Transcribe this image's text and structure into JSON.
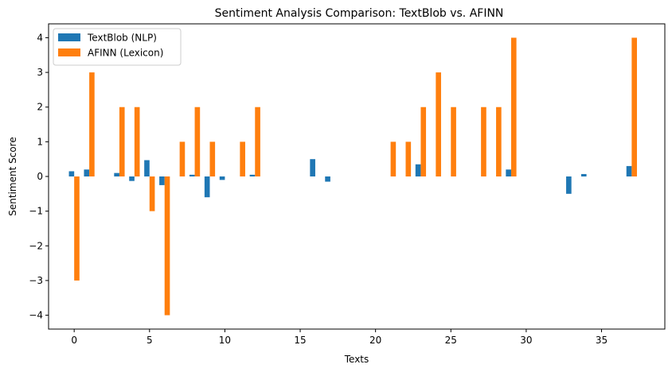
{
  "chart_data": {
    "type": "bar",
    "title": "Sentiment Analysis Comparison: TextBlob vs. AFINN",
    "xlabel": "Texts",
    "ylabel": "Sentiment Score",
    "xlim": [
      -1.7,
      39.2
    ],
    "ylim": [
      -4.4,
      4.4
    ],
    "xticks": [
      0,
      5,
      10,
      15,
      20,
      25,
      30,
      35
    ],
    "yticks": [
      -4,
      -3,
      -2,
      -1,
      0,
      1,
      2,
      3,
      4
    ],
    "ytick_labels": [
      "−4",
      "−3",
      "−2",
      "−1",
      "0",
      "1",
      "2",
      "3",
      "4"
    ],
    "legend_position": "upper-left",
    "bar_width": 0.35,
    "series": [
      {
        "name": "TextBlob (NLP)",
        "color": "#1f77b4",
        "values": [
          0.15,
          0.2,
          0,
          0.1,
          -0.13,
          0.47,
          -0.25,
          0,
          0.05,
          -0.6,
          -0.1,
          0,
          0.05,
          0,
          0,
          0,
          0.5,
          -0.15,
          0,
          0,
          0,
          0,
          0,
          0.35,
          0,
          0,
          0,
          0,
          0,
          0.2,
          0,
          0,
          0,
          -0.5,
          0.07,
          0,
          0,
          0.3
        ]
      },
      {
        "name": "AFINN (Lexicon)",
        "color": "#ff7f0e",
        "values": [
          -3,
          3,
          0,
          2,
          2,
          -1,
          -4,
          1,
          2,
          1,
          0,
          1,
          2,
          0,
          0,
          0,
          0,
          0,
          0,
          0,
          0,
          1,
          1,
          2,
          3,
          2,
          0,
          2,
          2,
          4,
          0,
          0,
          0,
          0,
          0,
          0,
          0,
          4
        ]
      }
    ]
  }
}
